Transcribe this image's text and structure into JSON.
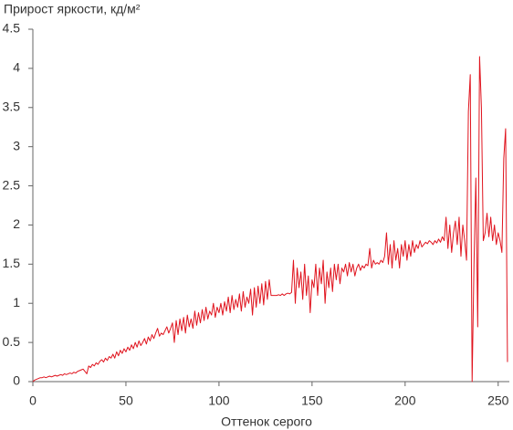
{
  "chart_data": {
    "type": "line",
    "title": "Прирост яркости, кд/м²",
    "xlabel": "Оттенок серого",
    "xlim": [
      0,
      256
    ],
    "xticks": [
      0,
      50,
      100,
      150,
      200,
      250
    ],
    "ylim": [
      0,
      4.5
    ],
    "yticks": [
      0,
      0.5,
      1,
      1.5,
      2,
      2.5,
      3,
      3.5,
      4,
      4.5
    ],
    "grid": false,
    "series": [
      {
        "color": "#e0141e",
        "x": [
          0,
          1,
          2,
          3,
          4,
          5,
          6,
          7,
          8,
          9,
          10,
          11,
          12,
          13,
          14,
          15,
          16,
          17,
          18,
          19,
          20,
          21,
          22,
          23,
          24,
          25,
          26,
          27,
          28,
          29,
          30,
          31,
          32,
          33,
          34,
          35,
          36,
          37,
          38,
          39,
          40,
          41,
          42,
          43,
          44,
          45,
          46,
          47,
          48,
          49,
          50,
          51,
          52,
          53,
          54,
          55,
          56,
          57,
          58,
          59,
          60,
          61,
          62,
          63,
          64,
          65,
          66,
          67,
          68,
          69,
          70,
          71,
          72,
          73,
          74,
          75,
          76,
          77,
          78,
          79,
          80,
          81,
          82,
          83,
          84,
          85,
          86,
          87,
          88,
          89,
          90,
          91,
          92,
          93,
          94,
          95,
          96,
          97,
          98,
          99,
          100,
          101,
          102,
          103,
          104,
          105,
          106,
          107,
          108,
          109,
          110,
          111,
          112,
          113,
          114,
          115,
          116,
          117,
          118,
          119,
          120,
          121,
          122,
          123,
          124,
          125,
          126,
          127,
          128,
          129,
          130,
          131,
          132,
          133,
          134,
          135,
          136,
          137,
          138,
          139,
          140,
          141,
          142,
          143,
          144,
          145,
          146,
          147,
          148,
          149,
          150,
          151,
          152,
          153,
          154,
          155,
          156,
          157,
          158,
          159,
          160,
          161,
          162,
          163,
          164,
          165,
          166,
          167,
          168,
          169,
          170,
          171,
          172,
          173,
          174,
          175,
          176,
          177,
          178,
          179,
          180,
          181,
          182,
          183,
          184,
          185,
          186,
          187,
          188,
          189,
          190,
          191,
          192,
          193,
          194,
          195,
          196,
          197,
          198,
          199,
          200,
          201,
          202,
          203,
          204,
          205,
          206,
          207,
          208,
          209,
          210,
          211,
          212,
          213,
          214,
          215,
          216,
          217,
          218,
          219,
          220,
          221,
          222,
          223,
          224,
          225,
          226,
          227,
          228,
          229,
          230,
          231,
          232,
          233,
          234,
          235,
          236,
          237,
          238,
          239,
          240,
          241,
          242,
          243,
          244,
          245,
          246,
          247,
          248,
          249,
          250,
          251,
          252,
          253,
          254,
          255
        ],
        "values": [
          0,
          0.02,
          0.03,
          0.04,
          0.05,
          0.05,
          0.06,
          0.05,
          0.06,
          0.07,
          0.06,
          0.07,
          0.08,
          0.07,
          0.08,
          0.09,
          0.08,
          0.1,
          0.09,
          0.1,
          0.11,
          0.1,
          0.12,
          0.11,
          0.13,
          0.14,
          0.15,
          0.16,
          0.13,
          0.1,
          0.2,
          0.18,
          0.22,
          0.2,
          0.24,
          0.22,
          0.26,
          0.28,
          0.25,
          0.3,
          0.27,
          0.32,
          0.3,
          0.35,
          0.3,
          0.38,
          0.33,
          0.4,
          0.36,
          0.42,
          0.38,
          0.44,
          0.4,
          0.47,
          0.42,
          0.5,
          0.44,
          0.52,
          0.46,
          0.5,
          0.55,
          0.48,
          0.57,
          0.52,
          0.6,
          0.55,
          0.62,
          0.68,
          0.58,
          0.62,
          0.6,
          0.65,
          0.7,
          0.62,
          0.68,
          0.75,
          0.5,
          0.78,
          0.6,
          0.8,
          0.65,
          0.82,
          0.62,
          0.85,
          0.7,
          0.8,
          0.68,
          0.9,
          0.72,
          0.88,
          0.75,
          0.92,
          0.78,
          0.95,
          0.8,
          0.9,
          0.85,
          1.0,
          0.82,
          0.95,
          0.88,
          1.0,
          0.85,
          1.02,
          0.9,
          1.08,
          0.88,
          1.1,
          0.92,
          1.05,
          0.95,
          1.12,
          0.9,
          1.15,
          0.95,
          1.08,
          1.0,
          1.18,
          0.85,
          1.2,
          0.95,
          1.22,
          1.0,
          1.25,
          0.98,
          1.28,
          1.05,
          1.3,
          1.1,
          1.1,
          1.1,
          1.1,
          1.11,
          1.1,
          1.12,
          1.1,
          1.12,
          1.13,
          1.12,
          1.14,
          1.55,
          1.0,
          1.45,
          1.2,
          1.4,
          1.05,
          1.5,
          1.1,
          1.35,
          0.88,
          1.3,
          1.2,
          1.5,
          1.1,
          1.45,
          1.25,
          1.55,
          1.0,
          1.4,
          1.2,
          1.45,
          1.15,
          1.5,
          1.3,
          1.5,
          1.25,
          1.45,
          1.4,
          1.5,
          1.35,
          1.52,
          1.4,
          1.5,
          1.35,
          1.45,
          1.5,
          1.42,
          1.48,
          1.45,
          1.5,
          1.48,
          1.7,
          1.45,
          1.55,
          1.5,
          1.52,
          1.5,
          1.55,
          1.52,
          1.6,
          1.9,
          1.5,
          1.75,
          1.45,
          1.8,
          1.55,
          1.7,
          1.45,
          1.75,
          1.6,
          1.8,
          1.55,
          1.75,
          1.6,
          1.8,
          1.65,
          1.75,
          1.7,
          1.8,
          1.72,
          1.75,
          1.78,
          1.76,
          1.8,
          1.78,
          1.75,
          1.8,
          1.77,
          1.82,
          1.78,
          1.85,
          1.8,
          2.1,
          1.7,
          2.0,
          1.65,
          1.9,
          2.05,
          1.75,
          2.1,
          1.6,
          2.0,
          1.8,
          1.55,
          3.45,
          3.92,
          0,
          1.5,
          2.6,
          0.7,
          4.15,
          3.5,
          1.8,
          1.9,
          2.15,
          1.85,
          2.1,
          1.8,
          2.0,
          1.75,
          1.9,
          1.8,
          1.65,
          2.85,
          3.23,
          0.25
        ]
      }
    ]
  }
}
